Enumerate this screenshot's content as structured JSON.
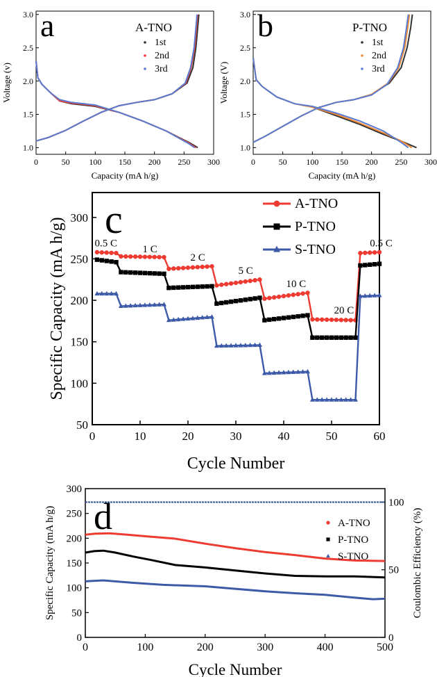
{
  "colors": {
    "red": "#ee3b32",
    "black": "#000000",
    "blue": "#3c5aa8",
    "dark": "#333333",
    "orange": "#f08a35",
    "gb": "#5b7bd0"
  },
  "chart_data": [
    {
      "type": "line",
      "panel_label": "a",
      "legend_title": "A-TNO",
      "xlabel": "Capacity (mA h/g)",
      "ylabel": "Voltage (v)",
      "xlim": [
        0,
        300
      ],
      "ylim": [
        0.9,
        3.05
      ],
      "xticks": [
        "0",
        "50",
        "100",
        "150",
        "200",
        "250",
        "300"
      ],
      "yticks": [
        "1.0",
        "1.5",
        "2.0",
        "2.5",
        "3.0"
      ],
      "legend": [
        "1st",
        "2nd",
        "3rd"
      ],
      "series": [
        {
          "name": "1st",
          "color": "#333333",
          "discharge": [
            [
              0,
              2.3
            ],
            [
              3,
              2.05
            ],
            [
              10,
              1.95
            ],
            [
              25,
              1.82
            ],
            [
              40,
              1.7
            ],
            [
              60,
              1.66
            ],
            [
              100,
              1.62
            ],
            [
              140,
              1.53
            ],
            [
              180,
              1.4
            ],
            [
              220,
              1.25
            ],
            [
              260,
              1.07
            ],
            [
              273,
              1.0
            ]
          ],
          "charge": [
            [
              0,
              1.1
            ],
            [
              20,
              1.15
            ],
            [
              50,
              1.26
            ],
            [
              80,
              1.4
            ],
            [
              110,
              1.53
            ],
            [
              140,
              1.63
            ],
            [
              170,
              1.68
            ],
            [
              200,
              1.72
            ],
            [
              230,
              1.81
            ],
            [
              255,
              1.97
            ],
            [
              265,
              2.2
            ],
            [
              270,
              2.5
            ],
            [
              273,
              2.8
            ],
            [
              275,
              3.0
            ]
          ]
        },
        {
          "name": "2nd",
          "color": "#ee3b32",
          "discharge": [
            [
              0,
              2.3
            ],
            [
              3,
              2.05
            ],
            [
              10,
              1.95
            ],
            [
              25,
              1.82
            ],
            [
              40,
              1.7
            ],
            [
              60,
              1.67
            ],
            [
              100,
              1.63
            ],
            [
              140,
              1.53
            ],
            [
              180,
              1.4
            ],
            [
              220,
              1.25
            ],
            [
              258,
              1.07
            ],
            [
              270,
              1.0
            ]
          ],
          "charge": [
            [
              0,
              1.1
            ],
            [
              20,
              1.15
            ],
            [
              50,
              1.26
            ],
            [
              80,
              1.4
            ],
            [
              110,
              1.53
            ],
            [
              140,
              1.63
            ],
            [
              170,
              1.68
            ],
            [
              200,
              1.72
            ],
            [
              230,
              1.81
            ],
            [
              253,
              1.97
            ],
            [
              262,
              2.2
            ],
            [
              268,
              2.5
            ],
            [
              271,
              2.8
            ],
            [
              273,
              3.0
            ]
          ]
        },
        {
          "name": "3rd",
          "color": "#5b7bd0",
          "discharge": [
            [
              0,
              2.3
            ],
            [
              3,
              2.05
            ],
            [
              10,
              1.95
            ],
            [
              25,
              1.82
            ],
            [
              40,
              1.72
            ],
            [
              60,
              1.68
            ],
            [
              100,
              1.64
            ],
            [
              140,
              1.53
            ],
            [
              180,
              1.4
            ],
            [
              220,
              1.25
            ],
            [
              256,
              1.07
            ],
            [
              268,
              1.0
            ]
          ],
          "charge": [
            [
              0,
              1.1
            ],
            [
              20,
              1.15
            ],
            [
              50,
              1.26
            ],
            [
              80,
              1.4
            ],
            [
              110,
              1.53
            ],
            [
              140,
              1.63
            ],
            [
              170,
              1.68
            ],
            [
              200,
              1.72
            ],
            [
              230,
              1.81
            ],
            [
              252,
              1.97
            ],
            [
              261,
              2.2
            ],
            [
              267,
              2.5
            ],
            [
              270,
              2.8
            ],
            [
              272,
              3.0
            ]
          ]
        }
      ]
    },
    {
      "type": "line",
      "panel_label": "b",
      "legend_title": "P-TNO",
      "xlabel": "Capacity (mA h/g)",
      "ylabel": "Voltage (V)",
      "xlim": [
        0,
        300
      ],
      "ylim": [
        0.9,
        3.05
      ],
      "xticks": [
        "0",
        "50",
        "100",
        "150",
        "200",
        "250",
        "300"
      ],
      "yticks": [
        "1.0",
        "1.5",
        "2.0",
        "2.5",
        "3.0"
      ],
      "legend": [
        "1st",
        "2nd",
        "3rd"
      ],
      "series": [
        {
          "name": "1st",
          "color": "#333333",
          "discharge": [
            [
              0,
              2.35
            ],
            [
              5,
              2.02
            ],
            [
              15,
              1.92
            ],
            [
              40,
              1.76
            ],
            [
              70,
              1.66
            ],
            [
              100,
              1.61
            ],
            [
              140,
              1.48
            ],
            [
              180,
              1.35
            ],
            [
              220,
              1.2
            ],
            [
              255,
              1.08
            ],
            [
              276,
              1.0
            ]
          ],
          "charge": [
            [
              0,
              1.08
            ],
            [
              20,
              1.17
            ],
            [
              50,
              1.32
            ],
            [
              80,
              1.47
            ],
            [
              110,
              1.6
            ],
            [
              140,
              1.68
            ],
            [
              170,
              1.72
            ],
            [
              200,
              1.8
            ],
            [
              230,
              1.97
            ],
            [
              250,
              2.2
            ],
            [
              260,
              2.5
            ],
            [
              266,
              2.8
            ],
            [
              269,
              3.0
            ]
          ]
        },
        {
          "name": "2nd",
          "color": "#f08a35",
          "discharge": [
            [
              0,
              2.35
            ],
            [
              5,
              2.02
            ],
            [
              15,
              1.92
            ],
            [
              40,
              1.76
            ],
            [
              70,
              1.66
            ],
            [
              100,
              1.61
            ],
            [
              140,
              1.5
            ],
            [
              180,
              1.37
            ],
            [
              220,
              1.22
            ],
            [
              250,
              1.1
            ],
            [
              268,
              1.0
            ]
          ],
          "charge": [
            [
              0,
              1.08
            ],
            [
              20,
              1.17
            ],
            [
              50,
              1.32
            ],
            [
              80,
              1.47
            ],
            [
              110,
              1.6
            ],
            [
              140,
              1.68
            ],
            [
              170,
              1.72
            ],
            [
              200,
              1.8
            ],
            [
              228,
              1.97
            ],
            [
              246,
              2.2
            ],
            [
              256,
              2.5
            ],
            [
              261,
              2.8
            ],
            [
              264,
              3.0
            ]
          ]
        },
        {
          "name": "3rd",
          "color": "#5b7bd0",
          "discharge": [
            [
              0,
              2.35
            ],
            [
              5,
              2.02
            ],
            [
              15,
              1.92
            ],
            [
              40,
              1.76
            ],
            [
              70,
              1.66
            ],
            [
              100,
              1.62
            ],
            [
              140,
              1.52
            ],
            [
              180,
              1.4
            ],
            [
              220,
              1.25
            ],
            [
              250,
              1.08
            ],
            [
              262,
              1.0
            ]
          ],
          "charge": [
            [
              0,
              1.08
            ],
            [
              20,
              1.17
            ],
            [
              50,
              1.32
            ],
            [
              80,
              1.47
            ],
            [
              110,
              1.6
            ],
            [
              140,
              1.68
            ],
            [
              170,
              1.72
            ],
            [
              200,
              1.79
            ],
            [
              226,
              1.95
            ],
            [
              244,
              2.2
            ],
            [
              254,
              2.5
            ],
            [
              259,
              2.8
            ],
            [
              262,
              3.0
            ]
          ]
        }
      ]
    },
    {
      "type": "line",
      "panel_label": "c",
      "xlabel": "Cycle Number",
      "ylabel": "Specific Capacity (mA h/g)",
      "xlim": [
        0,
        60
      ],
      "ylim": [
        50,
        330
      ],
      "xticks": [
        "0",
        "10",
        "20",
        "30",
        "40",
        "50",
        "60"
      ],
      "yticks": [
        "50",
        "100",
        "150",
        "200",
        "250",
        "300"
      ],
      "rate_labels": [
        {
          "text": "0.5 C",
          "x": 0.5,
          "y": 265
        },
        {
          "text": "1 C",
          "x": 10.5,
          "y": 258
        },
        {
          "text": "2 C",
          "x": 20.5,
          "y": 248
        },
        {
          "text": "5 C",
          "x": 30.5,
          "y": 232
        },
        {
          "text": "10 C",
          "x": 40.5,
          "y": 216
        },
        {
          "text": "20 C",
          "x": 50.5,
          "y": 184
        },
        {
          "text": "0.5 C",
          "x": 58,
          "y": 265
        }
      ],
      "series": [
        {
          "name": "A-TNO",
          "color": "#ee3b32",
          "marker": "circle",
          "steps": [
            [
              1,
              5,
              258,
              257
            ],
            [
              6,
              15,
              253,
              252
            ],
            [
              16,
              25,
              238,
              241
            ],
            [
              26,
              35,
              218,
              225
            ],
            [
              36,
              45,
              202,
              209
            ],
            [
              46,
              55,
              177,
              176
            ],
            [
              56,
              60,
              257,
              258
            ]
          ]
        },
        {
          "name": "P-TNO",
          "color": "#000000",
          "marker": "square",
          "steps": [
            [
              1,
              5,
              249,
              246
            ],
            [
              6,
              15,
              234,
              232
            ],
            [
              16,
              25,
              215,
              217
            ],
            [
              26,
              35,
              196,
              203
            ],
            [
              36,
              45,
              176,
              182
            ],
            [
              46,
              55,
              155,
              155
            ],
            [
              56,
              60,
              242,
              244
            ]
          ]
        },
        {
          "name": "S-TNO",
          "color": "#3c5aa8",
          "marker": "triangle",
          "steps": [
            [
              1,
              5,
              208,
              208
            ],
            [
              6,
              15,
              193,
              195
            ],
            [
              16,
              25,
              176,
              180
            ],
            [
              26,
              35,
              145,
              146
            ],
            [
              36,
              45,
              112,
              114
            ],
            [
              46,
              55,
              80,
              80
            ],
            [
              56,
              60,
              205,
              206
            ]
          ]
        }
      ]
    },
    {
      "type": "line",
      "panel_label": "d",
      "xlabel": "Cycle Number",
      "ylabel": "Specific Capacity (mA h/g)",
      "y2label": "Coulombic Efficiency (%)",
      "xlim": [
        0,
        500
      ],
      "ylim": [
        0,
        300
      ],
      "y2lim": [
        0,
        110
      ],
      "xticks": [
        "0",
        "100",
        "200",
        "300",
        "400",
        "500"
      ],
      "yticks": [
        "0",
        "50",
        "100",
        "150",
        "200",
        "250",
        "300"
      ],
      "y2ticks": [
        "0",
        "50",
        "100"
      ],
      "series": [
        {
          "name": "A-TNO",
          "color": "#ee3b32",
          "marker": "circle",
          "points": [
            [
              0,
              207
            ],
            [
              15,
              209
            ],
            [
              40,
              210
            ],
            [
              70,
              207
            ],
            [
              100,
              204
            ],
            [
              150,
              199
            ],
            [
              200,
              189
            ],
            [
              250,
              180
            ],
            [
              300,
              172
            ],
            [
              350,
              166
            ],
            [
              400,
              159
            ],
            [
              450,
              155
            ],
            [
              500,
              154
            ]
          ]
        },
        {
          "name": "P-TNO",
          "color": "#000000",
          "marker": "square",
          "points": [
            [
              0,
              171
            ],
            [
              15,
              174
            ],
            [
              30,
              175
            ],
            [
              50,
              171
            ],
            [
              80,
              163
            ],
            [
              110,
              156
            ],
            [
              150,
              146
            ],
            [
              200,
              141
            ],
            [
              250,
              135
            ],
            [
              300,
              129
            ],
            [
              350,
              124
            ],
            [
              400,
              123
            ],
            [
              450,
              123
            ],
            [
              500,
              121
            ]
          ]
        },
        {
          "name": "S-TNO",
          "color": "#3c5aa8",
          "marker": "triangle",
          "points": [
            [
              0,
              113
            ],
            [
              30,
              115
            ],
            [
              80,
              110
            ],
            [
              130,
              106
            ],
            [
              200,
              103
            ],
            [
              250,
              98
            ],
            [
              300,
              93
            ],
            [
              350,
              89
            ],
            [
              400,
              86
            ],
            [
              450,
              80
            ],
            [
              480,
              77
            ],
            [
              500,
              78
            ]
          ]
        }
      ],
      "efficiency": {
        "color": "#3c5aa8",
        "value": 100
      }
    }
  ]
}
